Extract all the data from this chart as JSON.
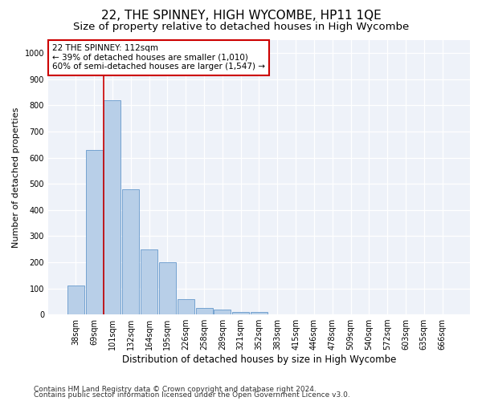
{
  "title": "22, THE SPINNEY, HIGH WYCOMBE, HP11 1QE",
  "subtitle": "Size of property relative to detached houses in High Wycombe",
  "xlabel": "Distribution of detached houses by size in High Wycombe",
  "ylabel": "Number of detached properties",
  "categories": [
    "38sqm",
    "69sqm",
    "101sqm",
    "132sqm",
    "164sqm",
    "195sqm",
    "226sqm",
    "258sqm",
    "289sqm",
    "321sqm",
    "352sqm",
    "383sqm",
    "415sqm",
    "446sqm",
    "478sqm",
    "509sqm",
    "540sqm",
    "572sqm",
    "603sqm",
    "635sqm",
    "666sqm"
  ],
  "values": [
    110,
    630,
    820,
    480,
    250,
    200,
    60,
    25,
    20,
    10,
    10,
    0,
    0,
    0,
    0,
    0,
    0,
    0,
    0,
    0,
    0
  ],
  "bar_color": "#b8cfe8",
  "bar_edge_color": "#6699cc",
  "redline_index": 1.5,
  "annotation_text": "22 THE SPINNEY: 112sqm\n← 39% of detached houses are smaller (1,010)\n60% of semi-detached houses are larger (1,547) →",
  "annotation_box_color": "#ffffff",
  "annotation_box_edge_color": "#cc0000",
  "redline_color": "#cc0000",
  "ylim": [
    0,
    1050
  ],
  "yticks": [
    0,
    100,
    200,
    300,
    400,
    500,
    600,
    700,
    800,
    900,
    1000
  ],
  "background_color": "#eef2f9",
  "grid_color": "#d0d8e8",
  "footer1": "Contains HM Land Registry data © Crown copyright and database right 2024.",
  "footer2": "Contains public sector information licensed under the Open Government Licence v3.0.",
  "title_fontsize": 11,
  "subtitle_fontsize": 9.5,
  "xlabel_fontsize": 8.5,
  "ylabel_fontsize": 8,
  "tick_fontsize": 7,
  "footer_fontsize": 6.5,
  "annotation_fontsize": 7.5
}
